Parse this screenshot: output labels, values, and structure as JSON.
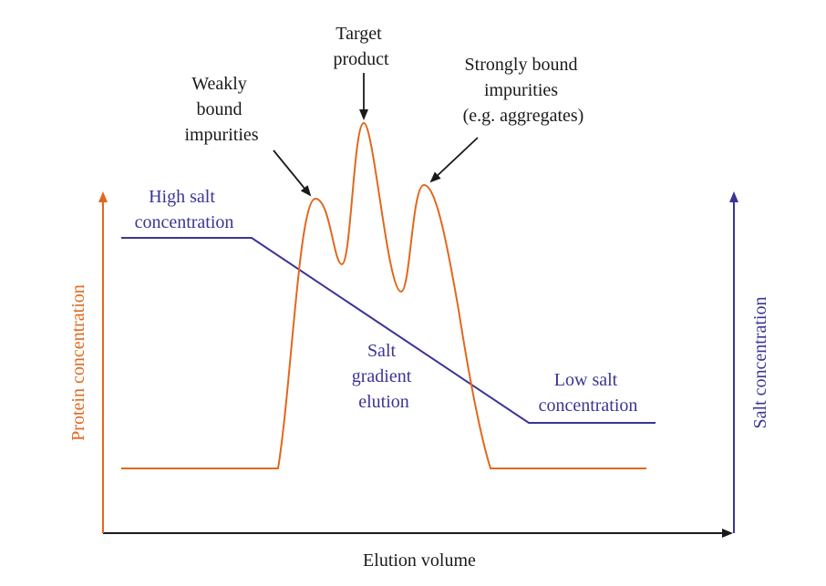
{
  "colors": {
    "protein_curve": "#e0681e",
    "salt_curve": "#3a3594",
    "axis_x": "#1a1a1a",
    "text_dark": "#1a1a1a"
  },
  "axes": {
    "x_label": "Elution volume",
    "y_left_label": "Protein concentration",
    "y_right_label": "Salt concentration"
  },
  "peaks": {
    "weakly": [
      "Weakly",
      "bound",
      "impurities"
    ],
    "target": [
      "Target",
      "product"
    ],
    "strongly": [
      "Strongly bound",
      "impurities",
      "(e.g. aggregates)"
    ]
  },
  "salt": {
    "high": [
      "High salt",
      "concentration"
    ],
    "gradient": [
      "Salt",
      "gradient",
      "elution"
    ],
    "low": [
      "Low salt",
      "concentration"
    ]
  }
}
